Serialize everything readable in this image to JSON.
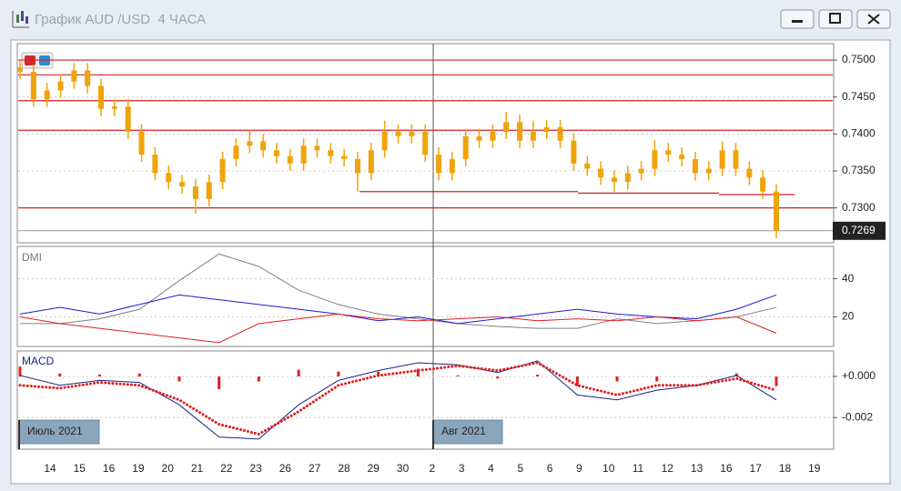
{
  "window": {
    "title": "График AUD /USD  4 ЧАСА"
  },
  "x_axis": {
    "labels": [
      "14",
      "15",
      "16",
      "19",
      "20",
      "21",
      "22",
      "23",
      "26",
      "27",
      "28",
      "29",
      "30",
      "2",
      "3",
      "4",
      "5",
      "6",
      "9",
      "10",
      "11",
      "12",
      "13",
      "16",
      "17",
      "18",
      "19"
    ],
    "periods": [
      "Июль 2021",
      "Авг 2021"
    ]
  },
  "chart_data": [
    {
      "type": "candlestick",
      "color": "#f0a30a",
      "open": [
        0.749,
        0.7484,
        0.7447,
        0.7459,
        0.7471,
        0.7486,
        0.7465,
        0.7434,
        0.7437,
        0.7403,
        0.7372,
        0.7347,
        0.7335,
        0.7329,
        0.7312,
        0.7335,
        0.7366,
        0.7384,
        0.739,
        0.7378,
        0.737,
        0.736,
        0.7384,
        0.7378,
        0.737,
        0.7366,
        0.7347,
        0.7378,
        0.7403,
        0.7397,
        0.7403,
        0.7372,
        0.7347,
        0.7366,
        0.7397,
        0.7391,
        0.7403,
        0.7416,
        0.7391,
        0.7403,
        0.7409,
        0.7391,
        0.736,
        0.7353,
        0.7341,
        0.7335,
        0.7347,
        0.7353,
        0.7378,
        0.7372,
        0.7366,
        0.7347,
        0.7353,
        0.7378,
        0.7353,
        0.7341,
        0.7322
      ],
      "high": [
        0.75,
        0.7494,
        0.7469,
        0.7481,
        0.7496,
        0.7496,
        0.7475,
        0.7447,
        0.7447,
        0.7413,
        0.7382,
        0.7357,
        0.7345,
        0.7339,
        0.7345,
        0.7376,
        0.7394,
        0.7405,
        0.74,
        0.7388,
        0.738,
        0.7394,
        0.7394,
        0.7388,
        0.738,
        0.7376,
        0.7388,
        0.7418,
        0.7413,
        0.7413,
        0.7413,
        0.7382,
        0.7376,
        0.7407,
        0.7407,
        0.7413,
        0.743,
        0.7426,
        0.7418,
        0.7419,
        0.7419,
        0.7401,
        0.737,
        0.7363,
        0.7351,
        0.7357,
        0.7363,
        0.7392,
        0.7388,
        0.7382,
        0.7376,
        0.7363,
        0.739,
        0.7388,
        0.7363,
        0.7351,
        0.7332
      ],
      "low": [
        0.7474,
        0.7437,
        0.7437,
        0.7449,
        0.7461,
        0.7455,
        0.7424,
        0.7424,
        0.7393,
        0.7362,
        0.7337,
        0.7325,
        0.7319,
        0.7292,
        0.7302,
        0.7325,
        0.7356,
        0.7374,
        0.7368,
        0.736,
        0.735,
        0.735,
        0.7368,
        0.736,
        0.7356,
        0.7322,
        0.7337,
        0.7368,
        0.7387,
        0.7387,
        0.7362,
        0.7337,
        0.7337,
        0.7356,
        0.7381,
        0.7381,
        0.7393,
        0.7381,
        0.7381,
        0.7393,
        0.7381,
        0.735,
        0.7343,
        0.7331,
        0.7322,
        0.7325,
        0.7337,
        0.7343,
        0.7362,
        0.7356,
        0.7337,
        0.7337,
        0.7343,
        0.7343,
        0.7331,
        0.7312,
        0.7259
      ],
      "close": [
        0.7484,
        0.7447,
        0.7459,
        0.7471,
        0.7486,
        0.7465,
        0.7434,
        0.7437,
        0.7403,
        0.7372,
        0.7347,
        0.7335,
        0.7329,
        0.7312,
        0.7335,
        0.7366,
        0.7384,
        0.739,
        0.7378,
        0.737,
        0.736,
        0.7384,
        0.7378,
        0.737,
        0.7366,
        0.7347,
        0.7378,
        0.7403,
        0.7397,
        0.7403,
        0.7372,
        0.7347,
        0.7366,
        0.7397,
        0.7391,
        0.7403,
        0.7416,
        0.7391,
        0.7403,
        0.7409,
        0.7391,
        0.736,
        0.7353,
        0.7341,
        0.7335,
        0.7347,
        0.7353,
        0.7378,
        0.7372,
        0.7366,
        0.7347,
        0.7353,
        0.7378,
        0.7353,
        0.7341,
        0.7322,
        0.7269
      ],
      "ylim": [
        0.7254,
        0.7521
      ],
      "yticks": [
        {
          "value": 0.73,
          "label": "0.7300"
        },
        {
          "value": 0.735,
          "label": "0.7350"
        },
        {
          "value": 0.74,
          "label": "0.7400"
        },
        {
          "value": 0.745,
          "label": "0.7450"
        },
        {
          "value": 0.75,
          "label": "0.7500"
        }
      ],
      "levels": [
        0.75,
        0.748,
        0.7445,
        0.7405,
        0.73
      ],
      "level_color": "#d42020",
      "segments": [
        0.7322,
        0.732,
        0.7318
      ],
      "last_price": 0.7269,
      "grid": true
    },
    {
      "type": "line",
      "label": "DMI",
      "ylim": [
        5,
        56.5
      ],
      "yticks": [
        20,
        40
      ],
      "grid": true,
      "series": [
        {
          "color": "#808080",
          "values": [
            16.5,
            16.5,
            19,
            24,
            39,
            53,
            46.5,
            34,
            26.5,
            21.5,
            19,
            16.5,
            15,
            14,
            14,
            19,
            16.5,
            18,
            20,
            25
          ]
        },
        {
          "color": "#1a1ad0",
          "values": [
            21.5,
            25,
            21.5,
            26.5,
            31.5,
            29,
            26.5,
            24,
            21.5,
            18,
            20,
            16.5,
            19,
            21.5,
            24,
            21.5,
            20,
            19,
            24,
            31.5
          ]
        },
        {
          "color": "#e02020",
          "values": [
            20,
            16.5,
            14,
            11.5,
            9,
            6.5,
            16.5,
            19,
            21.5,
            19,
            18,
            19,
            20,
            18,
            19,
            18,
            20,
            18,
            20,
            11.5
          ]
        }
      ]
    },
    {
      "type": "macd",
      "label": "MACD",
      "ylim": [
        -0.0035,
        0.0012
      ],
      "yticks": [
        {
          "value": -0.002,
          "label": "-0.002"
        },
        {
          "value": 0,
          "label": "+0.000"
        }
      ],
      "grid": true,
      "histogram": {
        "color": "#e02020",
        "values": [
          0.00048,
          0.00014,
          0.0001,
          0.00014,
          -0.00024,
          -0.00062,
          -0.00024,
          0.00033,
          0.00024,
          0.00024,
          0.00038,
          5e-05,
          -0.0001,
          9e-05,
          -0.00047,
          -0.00024,
          -0.00024,
          0,
          0.00015,
          -0.00047
        ]
      },
      "series": [
        {
          "color": "#1a237e",
          "values": [
            5e-05,
            -0.00043,
            -0.00019,
            -0.00029,
            -0.00138,
            -0.00295,
            -0.00305,
            -0.00138,
            -0.00019,
            0.00029,
            0.00067,
            0.00057,
            0.00019,
            0.00076,
            -0.0009,
            -0.00114,
            -0.00067,
            -0.00043,
            5e-05,
            -0.00114
          ]
        },
        {
          "color": "#e02020",
          "dotted": true,
          "values": [
            -0.00043,
            -0.00057,
            -0.00029,
            -0.00043,
            -0.00114,
            -0.00233,
            -0.00281,
            -0.00171,
            -0.00043,
            5e-05,
            0.00029,
            0.00052,
            0.00029,
            0.00067,
            -0.00043,
            -0.0009,
            -0.00043,
            -0.00043,
            -0.0001,
            -0.00067
          ]
        }
      ]
    }
  ]
}
